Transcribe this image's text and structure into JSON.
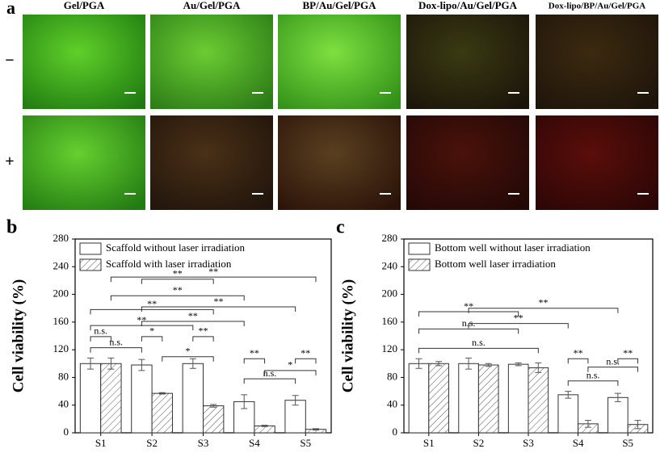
{
  "panel_a": {
    "label": "a",
    "columns": [
      "Gel/PGA",
      "Au/Gel/PGA",
      "BP/Au/Gel/PGA",
      "Dox-lipo/Au/Gel/PGA",
      "Dox-lipo/BP/Au/Gel/PGA"
    ],
    "rows": [
      "−",
      "+"
    ]
  },
  "chart_data": [
    {
      "type": "bar",
      "panel_label": "b",
      "y_label": "Cell viability (%)",
      "categories": [
        "S1",
        "S2",
        "S3",
        "S4",
        "S5"
      ],
      "series": [
        {
          "name": "Scaffold without laser irradiation",
          "color": "#ffffff",
          "hatch": false,
          "values": [
            100,
            98,
            100,
            45,
            47
          ],
          "errors": [
            8,
            8,
            7,
            10,
            7
          ]
        },
        {
          "name": "Scaffold with laser irradiation",
          "color": "#ffffff",
          "hatch": true,
          "values": [
            100,
            57,
            39,
            10,
            5
          ],
          "errors": [
            8,
            1,
            2,
            1,
            1
          ]
        }
      ],
      "ylim": [
        0,
        280
      ],
      "yticks": [
        0,
        40,
        80,
        120,
        160,
        200,
        240,
        280
      ],
      "legend": "top-left",
      "annotations": [
        {
          "label": "n.s.",
          "from": [
            0,
            0
          ],
          "to": [
            1,
            0
          ],
          "y": 139
        },
        {
          "label": "n.s.",
          "from": [
            0,
            0
          ],
          "to": [
            0,
            1
          ],
          "y": 123
        },
        {
          "label": "*",
          "from": [
            0,
            1
          ],
          "to": [
            1,
            1
          ],
          "y": 139
        },
        {
          "label": "*",
          "from": [
            1,
            1
          ],
          "to": [
            1,
            2
          ],
          "y": 110
        },
        {
          "label": "**",
          "from": [
            0,
            2
          ],
          "to": [
            1,
            2
          ],
          "y": 139
        },
        {
          "label": "**",
          "from": [
            0,
            0
          ],
          "to": [
            0,
            2
          ],
          "y": 155
        },
        {
          "label": "**",
          "from": [
            0,
            1
          ],
          "to": [
            0,
            3
          ],
          "y": 161
        },
        {
          "label": "**",
          "from": [
            0,
            0
          ],
          "to": [
            1,
            2
          ],
          "y": 178
        },
        {
          "label": "**",
          "from": [
            0,
            1
          ],
          "to": [
            0,
            4
          ],
          "y": 182
        },
        {
          "label": "**",
          "from": [
            1,
            0
          ],
          "to": [
            0,
            3
          ],
          "y": 198
        },
        {
          "label": "**",
          "from": [
            0,
            1
          ],
          "to": [
            1,
            2
          ],
          "y": 222
        },
        {
          "label": "**",
          "from": [
            1,
            0
          ],
          "to": [
            1,
            4
          ],
          "y": 225
        },
        {
          "label": "**",
          "from": [
            0,
            3
          ],
          "to": [
            1,
            3
          ],
          "y": 107
        },
        {
          "label": "n.s.",
          "from": [
            0,
            3
          ],
          "to": [
            0,
            4
          ],
          "y": 78
        },
        {
          "label": "*",
          "from": [
            1,
            3
          ],
          "to": [
            1,
            4
          ],
          "y": 90
        },
        {
          "label": "**",
          "from": [
            0,
            4
          ],
          "to": [
            1,
            4
          ],
          "y": 107
        }
      ]
    },
    {
      "type": "bar",
      "panel_label": "c",
      "y_label": "Cell viability (%)",
      "categories": [
        "S1",
        "S2",
        "S3",
        "S4",
        "S5"
      ],
      "series": [
        {
          "name": "Bottom well without laser irradiation",
          "color": "#ffffff",
          "hatch": false,
          "values": [
            100,
            100,
            99,
            55,
            51
          ],
          "errors": [
            7,
            8,
            2,
            5,
            6
          ]
        },
        {
          "name": "Bottom well laser irradiation",
          "color": "#ffffff",
          "hatch": true,
          "values": [
            100,
            98,
            94,
            13,
            12
          ],
          "errors": [
            3,
            2,
            7,
            5,
            6
          ]
        }
      ],
      "ylim": [
        0,
        280
      ],
      "yticks": [
        0,
        40,
        80,
        120,
        160,
        200,
        240,
        280
      ],
      "legend": "top-left",
      "annotations": [
        {
          "label": "n.s.",
          "from": [
            0,
            0
          ],
          "to": [
            1,
            2
          ],
          "y": 122
        },
        {
          "label": "n.s.",
          "from": [
            0,
            0
          ],
          "to": [
            0,
            2
          ],
          "y": 150
        },
        {
          "label": "**",
          "from": [
            0,
            1
          ],
          "to": [
            0,
            3
          ],
          "y": 158
        },
        {
          "label": "**",
          "from": [
            0,
            0
          ],
          "to": [
            0,
            2
          ],
          "y": 175
        },
        {
          "label": "**",
          "from": [
            0,
            1
          ],
          "to": [
            0,
            4
          ],
          "y": 180
        },
        {
          "label": "**",
          "from": [
            0,
            3
          ],
          "to": [
            1,
            3
          ],
          "y": 107
        },
        {
          "label": "n.s.",
          "from": [
            0,
            3
          ],
          "to": [
            0,
            4
          ],
          "y": 75
        },
        {
          "label": "n.s.",
          "from": [
            1,
            3
          ],
          "to": [
            1,
            4
          ],
          "y": 95
        },
        {
          "label": "**",
          "from": [
            0,
            4
          ],
          "to": [
            1,
            4
          ],
          "y": 107
        }
      ]
    }
  ]
}
